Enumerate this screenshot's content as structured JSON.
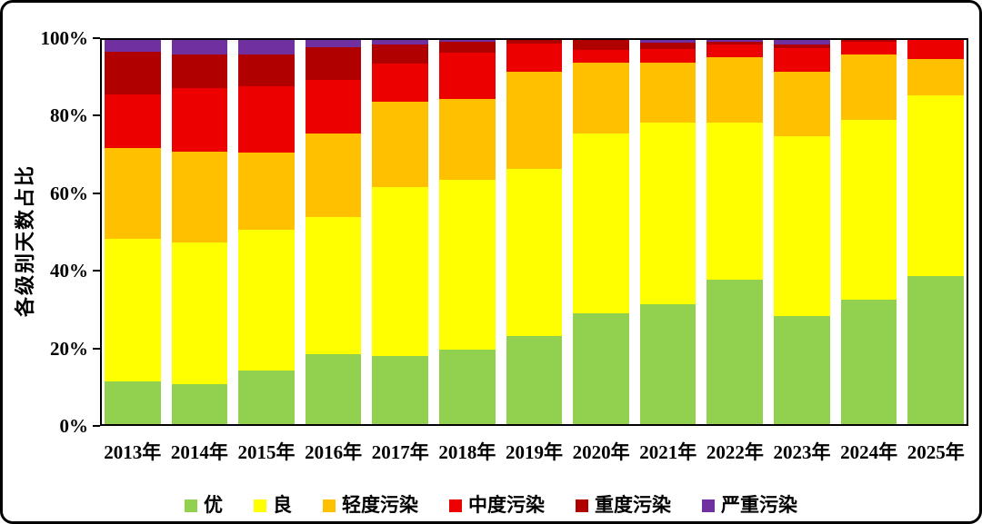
{
  "figure": {
    "background_color": "#FFFFFF",
    "frame_border_color": "#000000"
  },
  "chart_data": {
    "type": "bar",
    "variant": "stacked-percent",
    "title": "",
    "xlabel": "",
    "ylabel": "各级别天数占比",
    "ylim": [
      0,
      100
    ],
    "yticks": [
      0,
      20,
      40,
      60,
      80,
      100
    ],
    "ytick_labels": [
      "0%",
      "20%",
      "40%",
      "60%",
      "80%",
      "100%"
    ],
    "grid": false,
    "legend_position": "bottom",
    "categories": [
      "2013年",
      "2014年",
      "2015年",
      "2016年",
      "2017年",
      "2018年",
      "2019年",
      "2020年",
      "2021年",
      "2022年",
      "2023年",
      "2024年",
      "2025年"
    ],
    "series": [
      {
        "name": "优",
        "key": "excellent",
        "color": "#92D050",
        "values": [
          11.0,
          10.5,
          14.0,
          18.3,
          17.8,
          19.5,
          23.0,
          28.8,
          31.3,
          37.7,
          28.2,
          32.5,
          38.5
        ]
      },
      {
        "name": "良",
        "key": "good",
        "color": "#FFFF00",
        "values": [
          37.3,
          36.9,
          36.7,
          35.5,
          43.9,
          44.0,
          43.4,
          46.9,
          47.1,
          40.7,
          46.7,
          46.7,
          47.1
        ]
      },
      {
        "name": "轻度污染",
        "key": "light-pollution",
        "color": "#FFC000",
        "values": [
          23.5,
          23.6,
          20.1,
          21.9,
          22.3,
          21.2,
          25.4,
          18.5,
          15.8,
          17.0,
          16.9,
          17.1,
          9.4
        ]
      },
      {
        "name": "中度污染",
        "key": "moderate-pollution",
        "color": "#EC0000",
        "values": [
          14.1,
          16.5,
          17.1,
          13.8,
          9.8,
          12.1,
          7.2,
          3.1,
          3.5,
          3.4,
          6.1,
          3.2,
          5.0
        ]
      },
      {
        "name": "重度污染",
        "key": "heavy-pollution",
        "color": "#B00000",
        "values": [
          11.0,
          8.7,
          8.3,
          8.6,
          5.1,
          2.7,
          1.0,
          2.7,
          1.6,
          0.8,
          1.0,
          0.5,
          0.0
        ]
      },
      {
        "name": "严重污染",
        "key": "severe-pollution",
        "color": "#7030A0",
        "values": [
          3.1,
          3.8,
          3.8,
          1.9,
          1.1,
          0.5,
          0.0,
          0.0,
          0.7,
          0.4,
          1.1,
          0.0,
          0.0
        ]
      }
    ]
  }
}
